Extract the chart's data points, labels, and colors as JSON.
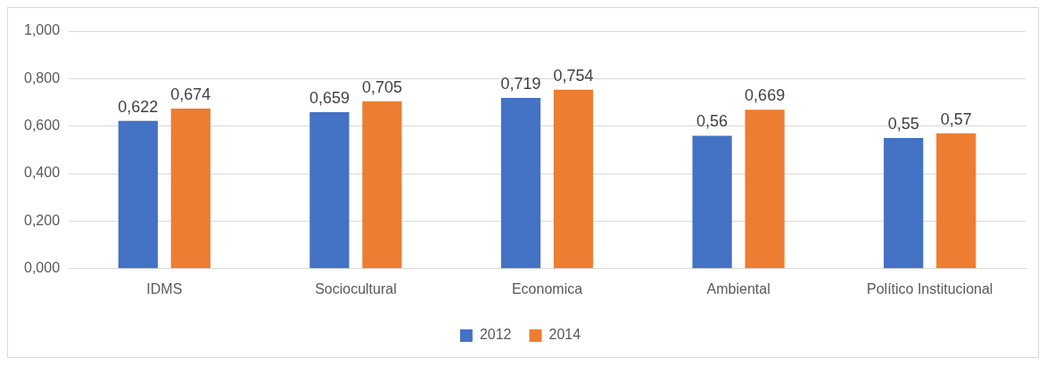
{
  "chart_data": {
    "type": "bar",
    "categories": [
      "IDMS",
      "Sociocultural",
      "Economica",
      "Ambiental",
      "Político Institucional"
    ],
    "series": [
      {
        "name": "2012",
        "color": "#4472c4",
        "values": [
          0.622,
          0.659,
          0.719,
          0.56,
          0.55
        ],
        "value_labels": [
          "0,622",
          "0,659",
          "0,719",
          "0,56",
          "0,55"
        ]
      },
      {
        "name": "2014",
        "color": "#ed7d31",
        "values": [
          0.674,
          0.705,
          0.754,
          0.669,
          0.57
        ],
        "value_labels": [
          "0,674",
          "0,705",
          "0,754",
          "0,669",
          "0,57"
        ]
      }
    ],
    "ylim": [
      0,
      1
    ],
    "yticks": [
      {
        "value": 0,
        "label": "0,000"
      },
      {
        "value": 0.2,
        "label": "0,200"
      },
      {
        "value": 0.4,
        "label": "0,400"
      },
      {
        "value": 0.6,
        "label": "0,600"
      },
      {
        "value": 0.8,
        "label": "0,800"
      },
      {
        "value": 1,
        "label": "1,000"
      }
    ],
    "grid": "y",
    "legend": "bottom"
  }
}
